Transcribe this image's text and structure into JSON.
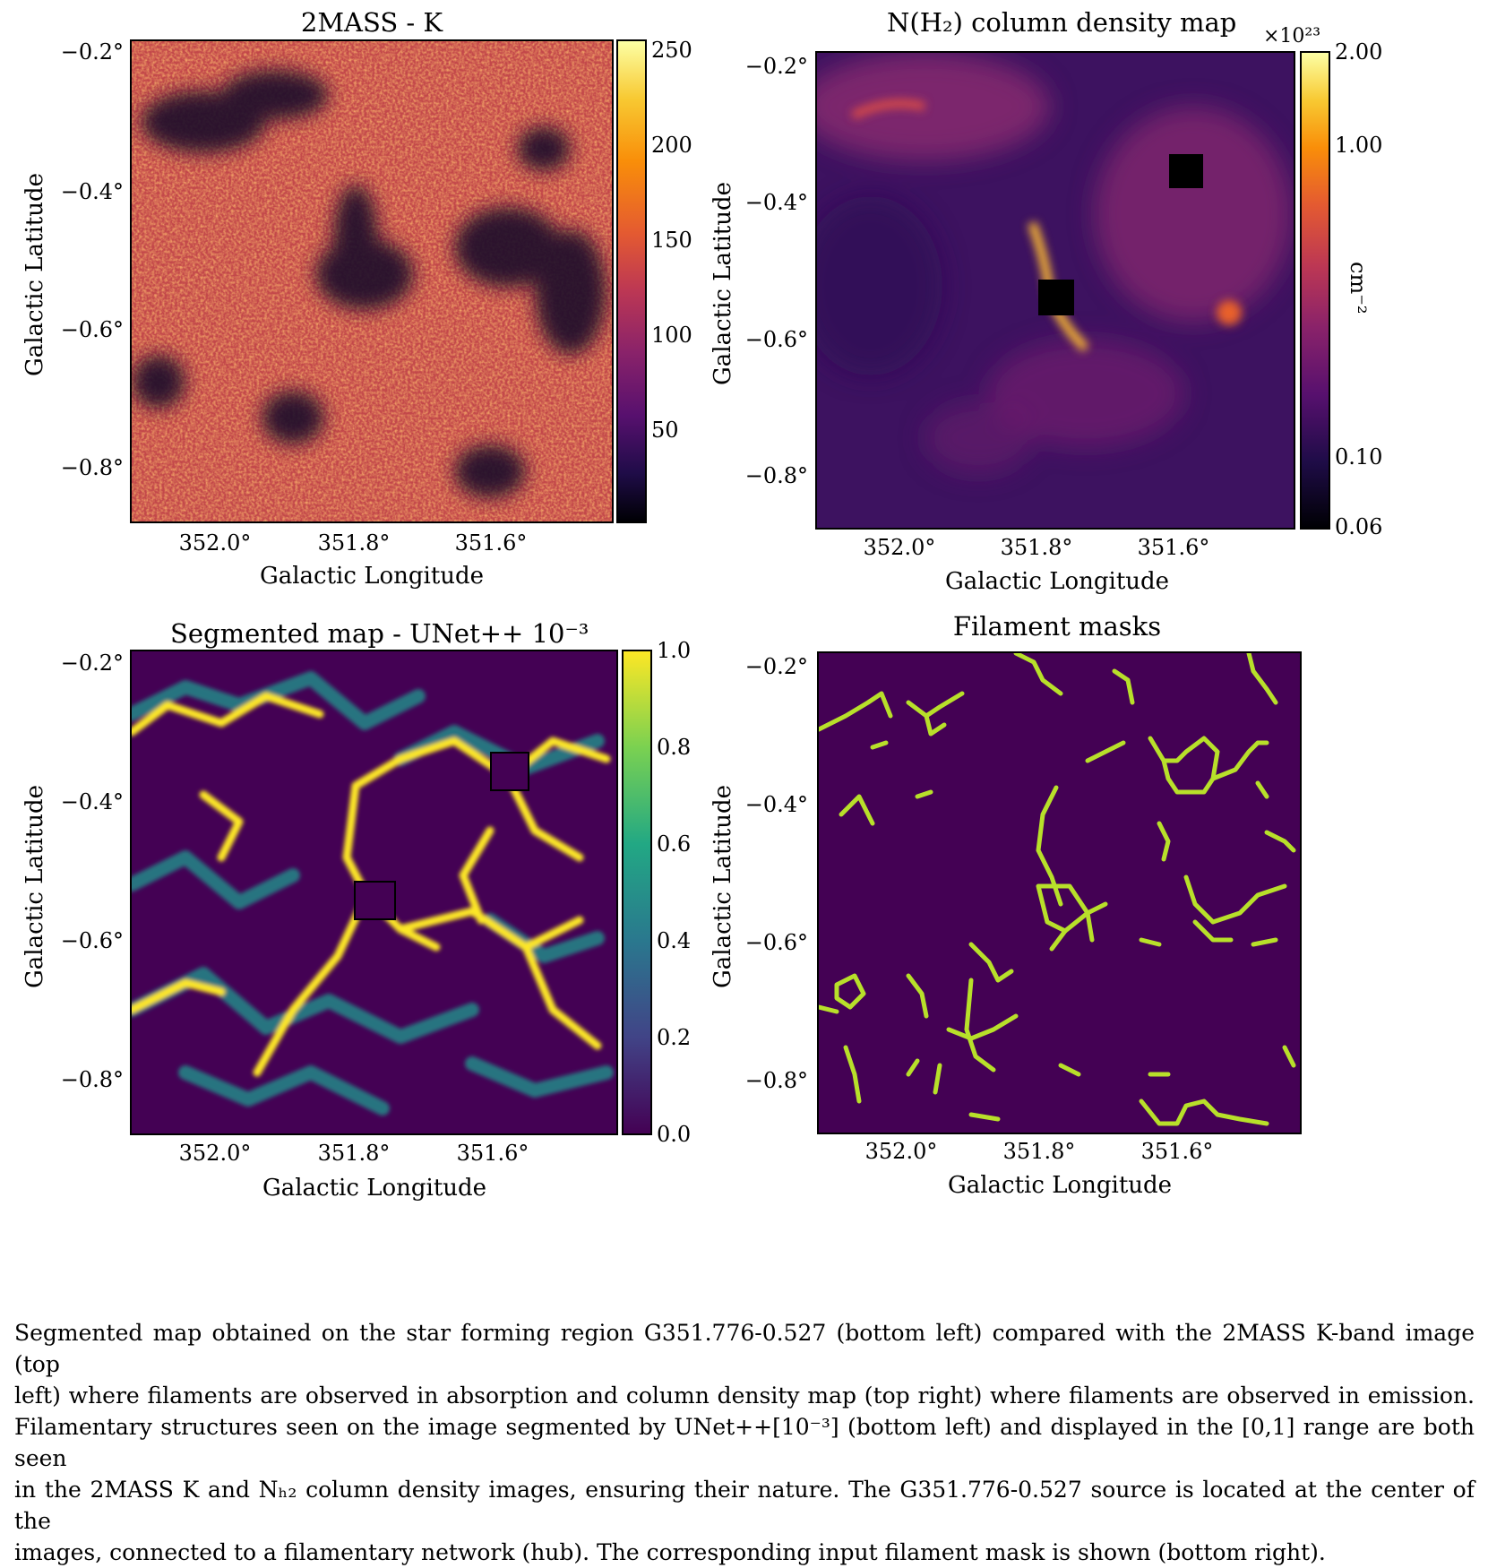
{
  "panels": {
    "tl": {
      "title": "2MASS - K",
      "ylabel": "Galactic Latitude",
      "xlabel": "Galactic Longitude",
      "yticks": [
        "−0.2°",
        "−0.4°",
        "−0.6°",
        "−0.8°"
      ],
      "xticks": [
        "352.0°",
        "351.8°",
        "351.6°"
      ],
      "cbar_ticks": [
        "250",
        "200",
        "150",
        "100",
        "50"
      ]
    },
    "tr": {
      "title": "N(H₂) column density map",
      "ylabel": "Galactic Latitude",
      "xlabel": "Galactic Longitude",
      "yticks": [
        "−0.2°",
        "−0.4°",
        "−0.6°",
        "−0.8°"
      ],
      "xticks": [
        "352.0°",
        "351.8°",
        "351.6°"
      ],
      "cbar_ticks": [
        "2.00",
        "1.00",
        "0.10",
        "0.06"
      ],
      "cbar_exponent": "×10²³",
      "cbar_unit": "cm⁻²"
    },
    "bl": {
      "title": "Segmented map - UNet++ 10⁻³",
      "ylabel": "Galactic Latitude",
      "xlabel": "Galactic Longitude",
      "yticks": [
        "−0.2°",
        "−0.4°",
        "−0.6°",
        "−0.8°"
      ],
      "xticks": [
        "352.0°",
        "351.8°",
        "351.6°"
      ],
      "cbar_ticks": [
        "1.0",
        "0.8",
        "0.6",
        "0.4",
        "0.2",
        "0.0"
      ]
    },
    "br": {
      "title": "Filament masks",
      "ylabel": "Galactic Latitude",
      "xlabel": "Galactic Longitude",
      "yticks": [
        "−0.2°",
        "−0.4°",
        "−0.6°",
        "−0.8°"
      ],
      "xticks": [
        "352.0°",
        "351.8°",
        "351.6°"
      ]
    }
  },
  "caption": {
    "line1": "Segmented map obtained on the star forming region G351.776-0.527 (bottom left) compared with the 2MASS K-band image (top",
    "line2": "left) where filaments are observed in absorption and column density map (top right) where filaments are observed in emission.",
    "line3": "Filamentary structures seen on the image segmented by UNet++[10⁻³] (bottom left) and displayed in the [0,1] range are both seen",
    "line4": "in the 2MASS K and Nₕ₂ column density images, ensuring their nature. The G351.776-0.527 source is located at the center of the",
    "line5": "images, connected to a filamentary network (hub). The corresponding input filament mask is shown (bottom right)."
  },
  "colors": {
    "inferno_dark": "#0c0826",
    "inferno_mid": "#b5367a",
    "inferno_bright": "#fcffa4",
    "viridis_dark": "#440154",
    "viridis_mid": "#21918c",
    "viridis_bright": "#fde725",
    "mask_bg": "#440154",
    "mask_line": "#b8e02a"
  }
}
